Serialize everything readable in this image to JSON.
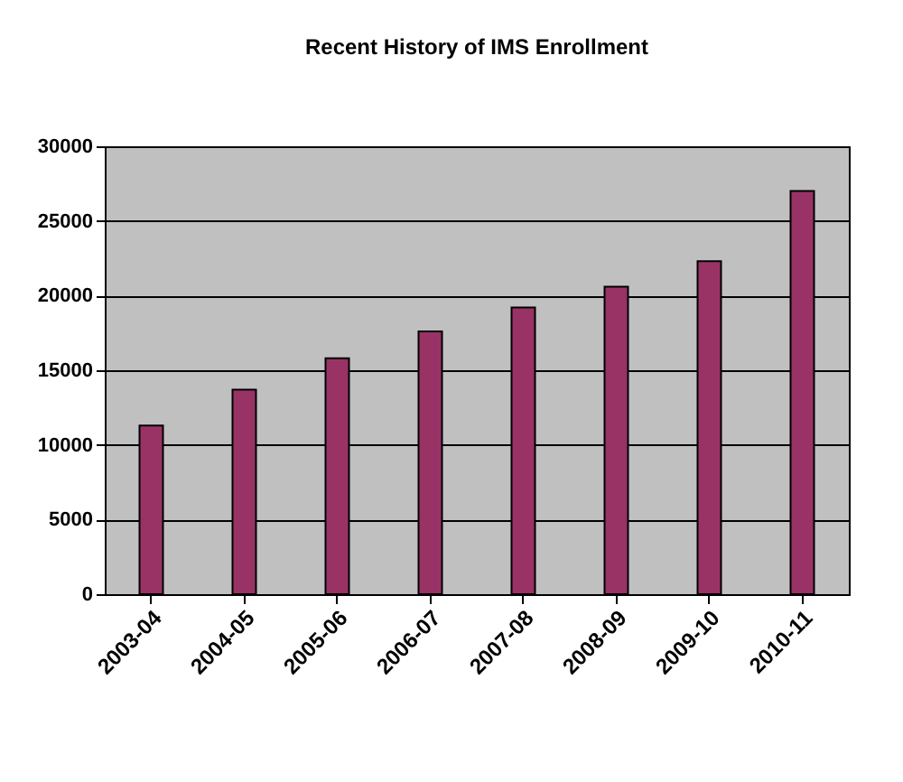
{
  "chart_data": {
    "type": "bar",
    "title": "Recent History of IMS Enrollment",
    "categories": [
      "2003-04",
      "2004-05",
      "2005-06",
      "2006-07",
      "2007-08",
      "2008-09",
      "2009-10",
      "2010-11"
    ],
    "values": [
      11300,
      13700,
      15800,
      17600,
      19200,
      20600,
      22300,
      27000
    ],
    "color": "#993366",
    "ylim": [
      0,
      30000
    ],
    "yticks": [
      0,
      5000,
      10000,
      15000,
      20000,
      25000,
      30000
    ],
    "grid": "y"
  }
}
